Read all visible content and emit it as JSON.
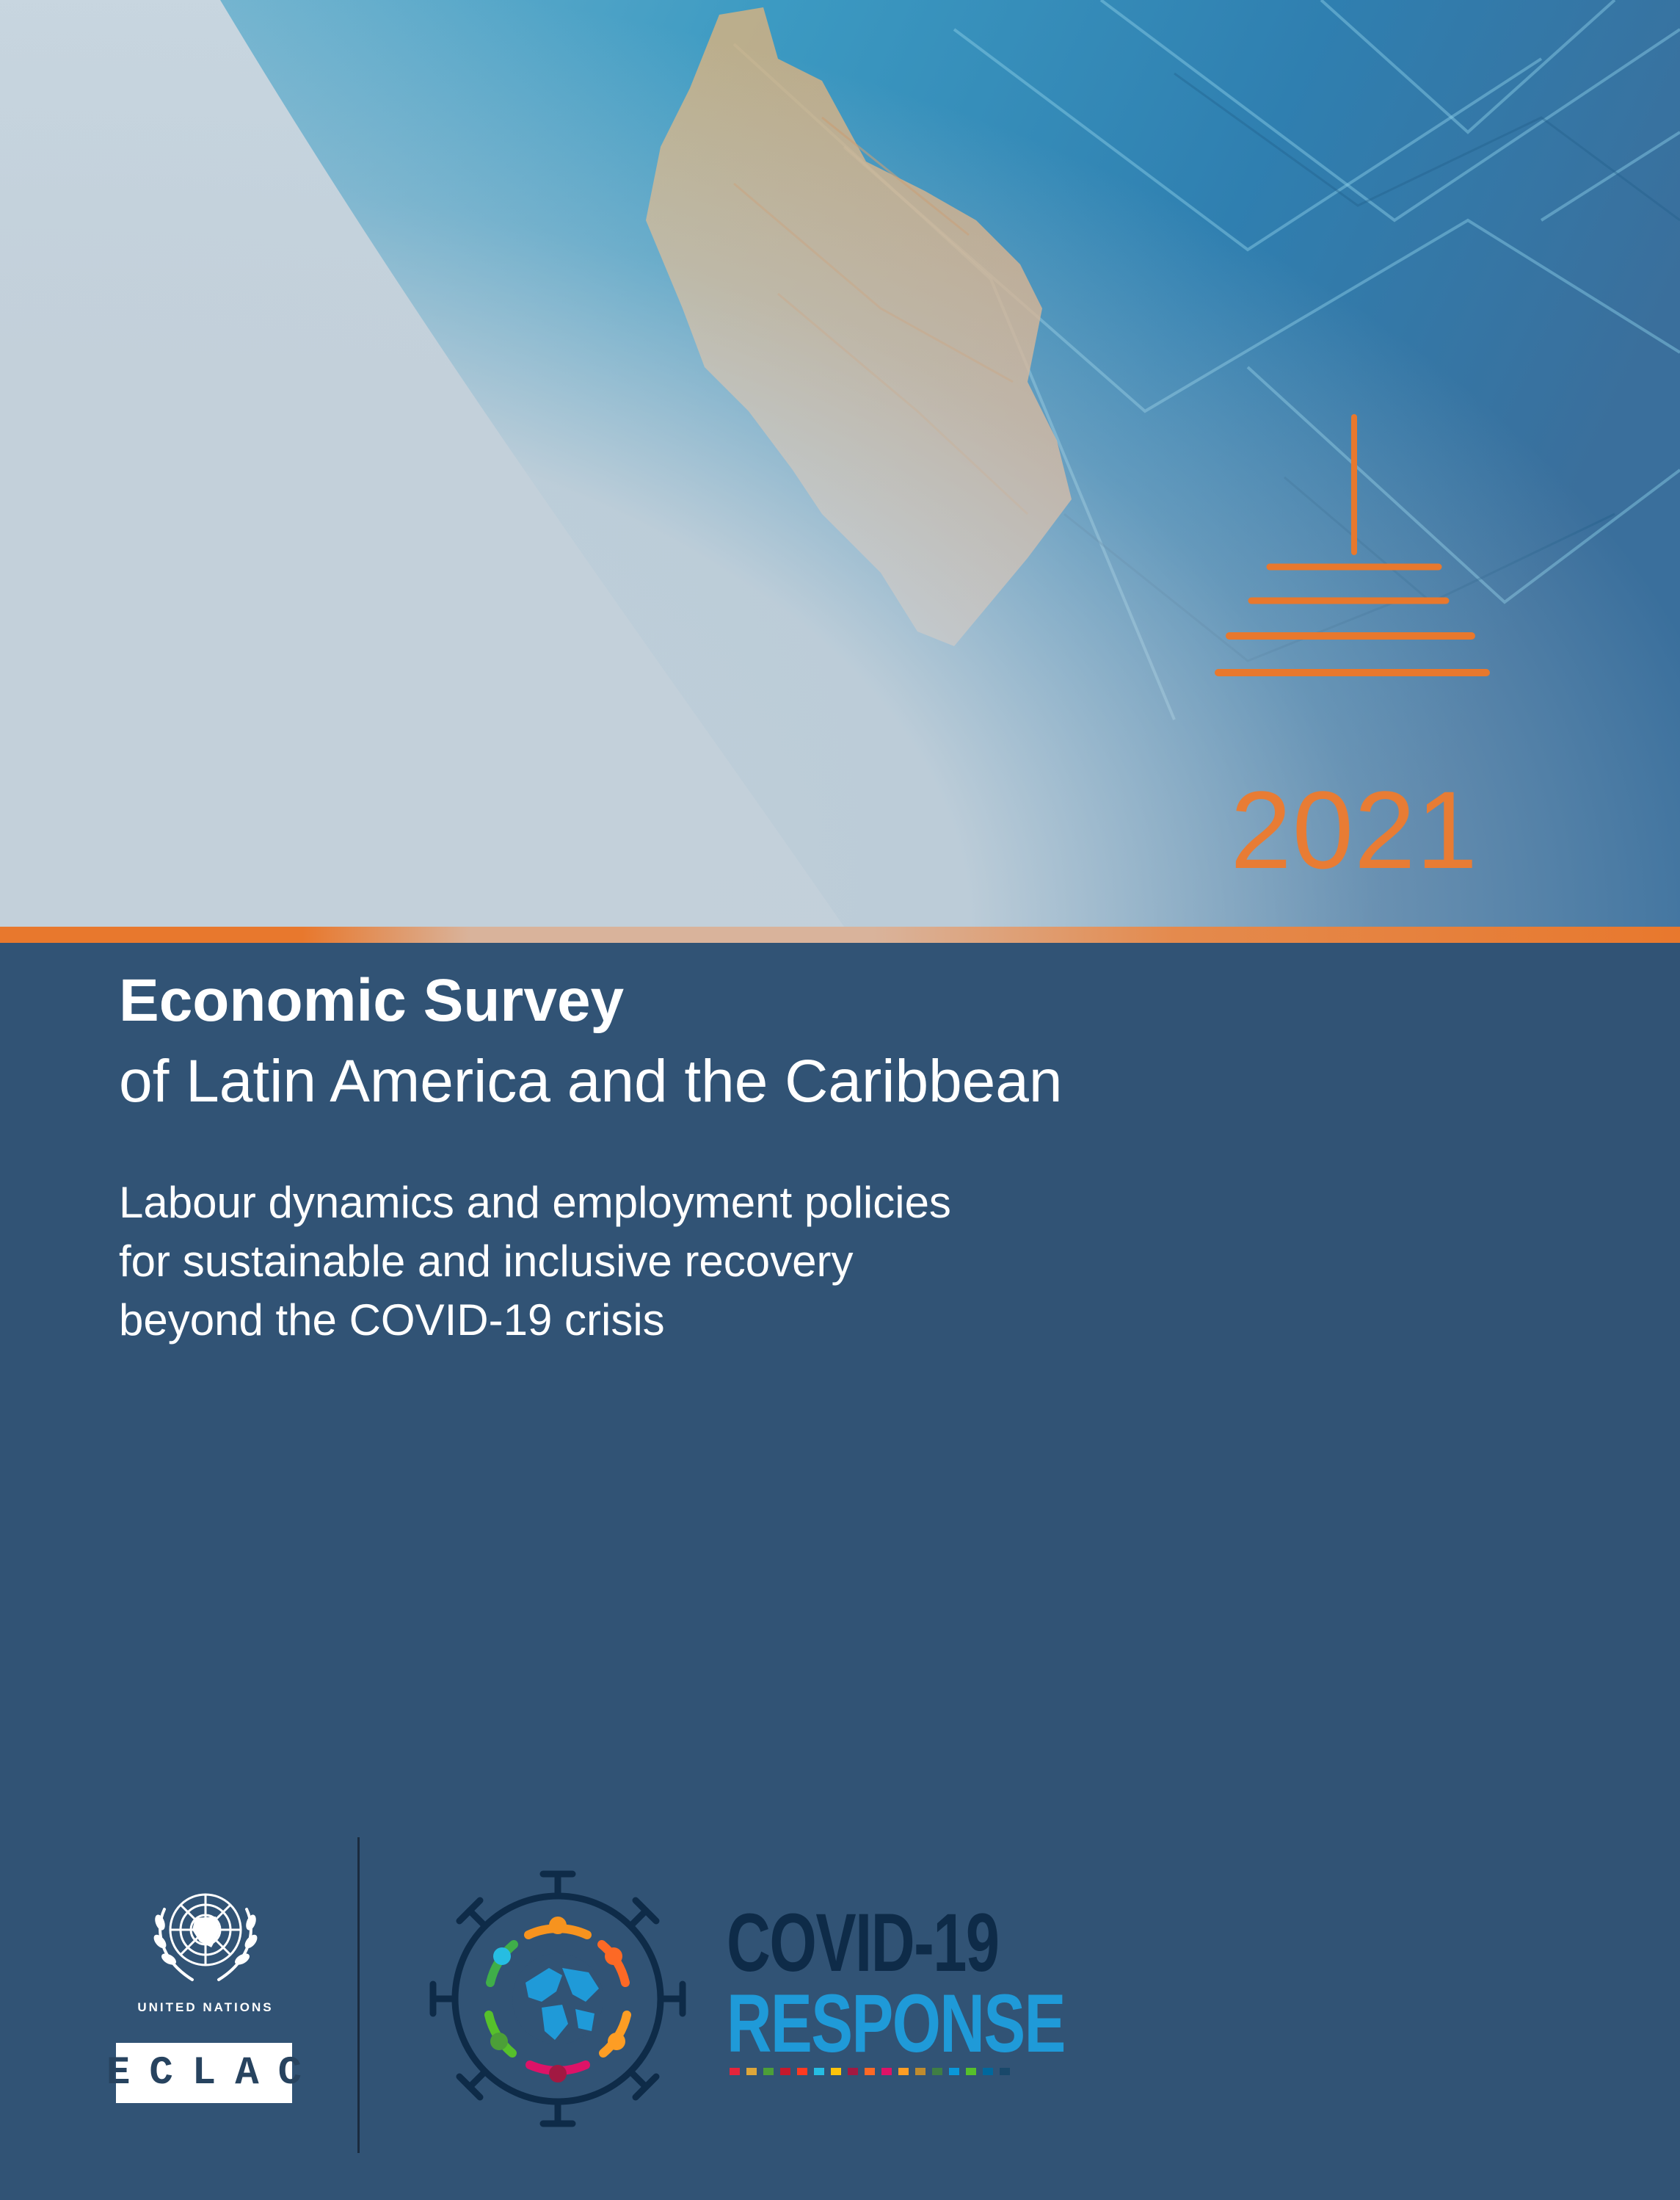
{
  "cover": {
    "year": "2021",
    "title_main": "Economic Survey",
    "title_sub": "of Latin America and the Caribbean",
    "subtitle_lines": [
      "Labour dynamics and employment policies",
      "for sustainable and inclusive recovery",
      "beyond the COVID-19 crisis"
    ]
  },
  "footer": {
    "un_label": "UNITED NATIONS",
    "eclac_label": "ECLAC",
    "covid_line1": "COVID-19",
    "covid_line2": "RESPONSE",
    "sdg_colors": [
      "#e5243b",
      "#dda63a",
      "#4c9f38",
      "#c5192d",
      "#ff3a21",
      "#26bde2",
      "#fcc30b",
      "#a21942",
      "#fd6925",
      "#dd1367",
      "#fd9d24",
      "#bf8b2e",
      "#3f7e44",
      "#0a97d9",
      "#56c02b",
      "#00689d",
      "#19486a"
    ]
  },
  "colors": {
    "accent_orange": "#e87c34",
    "panel_blue": "#315375",
    "covid_navy": "#0e2b48",
    "covid_blue": "#1f9ad8"
  },
  "icons": {
    "un_emblem": "united-nations-emblem",
    "covid_emblem": "covid-response-emblem",
    "sun_symbol": "orange-horizon-symbol"
  }
}
